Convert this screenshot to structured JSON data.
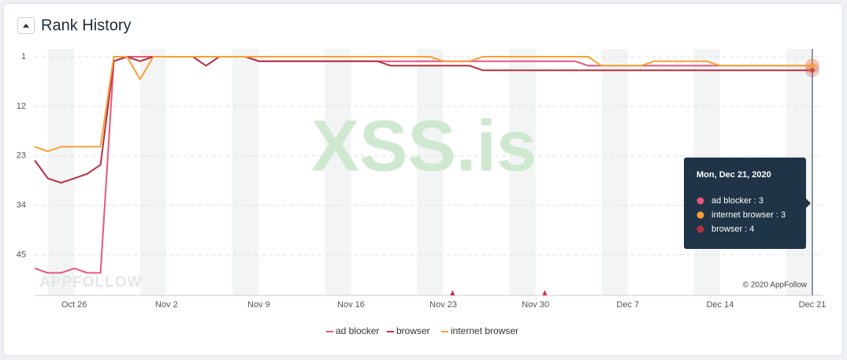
{
  "header": {
    "title": "Rank History"
  },
  "chart_data": {
    "type": "line",
    "inverted_y": true,
    "categories": [
      null,
      null,
      null,
      "Oct 26",
      null,
      null,
      null,
      null,
      null,
      null,
      "Nov 2",
      null,
      null,
      null,
      null,
      null,
      null,
      "Nov 9",
      null,
      null,
      null,
      null,
      null,
      null,
      "Nov 16",
      null,
      null,
      null,
      null,
      null,
      null,
      "Nov 23",
      null,
      null,
      null,
      null,
      null,
      null,
      "Nov 30",
      null,
      null,
      null,
      null,
      null,
      null,
      "Dec 7",
      null,
      null,
      null,
      null,
      null,
      null,
      "Dec 14",
      null,
      null,
      null,
      null,
      null,
      null,
      "Dec 21"
    ],
    "series": [
      {
        "name": "ad blocker",
        "color": "#e8577a",
        "values": [
          48,
          49,
          49,
          48,
          49,
          49,
          2,
          1,
          1,
          1,
          1,
          1,
          1,
          1,
          1,
          1,
          1,
          2,
          2,
          2,
          2,
          2,
          2,
          2,
          2,
          2,
          2,
          2,
          2,
          2,
          2,
          2,
          2,
          2,
          2,
          2,
          2,
          2,
          2,
          2,
          2,
          2,
          3,
          3,
          3,
          3,
          3,
          3,
          3,
          3,
          3,
          3,
          3,
          3,
          3,
          3,
          3,
          3,
          3,
          3
        ]
      },
      {
        "name": "browser",
        "color": "#b5303f",
        "values": [
          24,
          28,
          29,
          28,
          27,
          25,
          2,
          1,
          2,
          1,
          1,
          1,
          1,
          3,
          1,
          1,
          1,
          2,
          2,
          2,
          2,
          2,
          2,
          2,
          2,
          2,
          2,
          3,
          3,
          3,
          3,
          3,
          3,
          3,
          4,
          4,
          4,
          4,
          4,
          4,
          4,
          4,
          4,
          4,
          4,
          4,
          4,
          4,
          4,
          4,
          4,
          4,
          4,
          4,
          4,
          4,
          4,
          4,
          4,
          4
        ]
      },
      {
        "name": "internet browser",
        "color": "#f7a03a",
        "values": [
          21,
          22,
          21,
          21,
          21,
          21,
          1,
          1,
          6,
          1,
          1,
          1,
          1,
          1,
          1,
          1,
          1,
          1,
          1,
          1,
          1,
          1,
          1,
          1,
          1,
          1,
          1,
          1,
          1,
          1,
          1,
          2,
          2,
          2,
          1,
          1,
          1,
          1,
          1,
          1,
          1,
          1,
          1,
          3,
          3,
          3,
          3,
          2,
          2,
          2,
          2,
          2,
          3,
          3,
          3,
          3,
          3,
          3,
          3,
          3
        ]
      }
    ],
    "ylim": [
      1,
      54
    ],
    "yticks": [
      1,
      12,
      23,
      34,
      45
    ],
    "grid": true,
    "legend": "bottom",
    "watermarks": [
      "XSS.is",
      "APPFOLLOW"
    ],
    "copyright": "© 2020 AppFollow",
    "tooltip": {
      "date": "Mon, Dec 21, 2020",
      "items": [
        "ad blocker : 3",
        "internet browser : 3",
        "browser : 4"
      ]
    }
  }
}
